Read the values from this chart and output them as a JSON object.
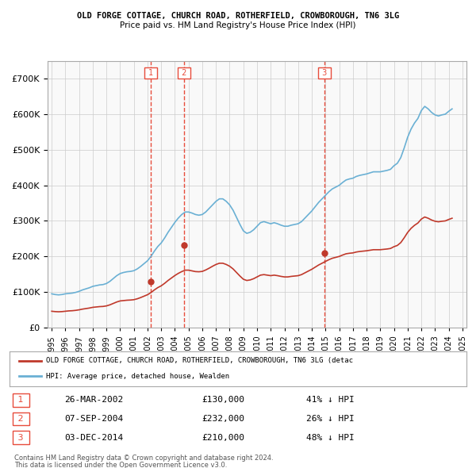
{
  "title1": "OLD FORGE COTTAGE, CHURCH ROAD, ROTHERFIELD, CROWBOROUGH, TN6 3LG",
  "title2": "Price paid vs. HM Land Registry's House Price Index (HPI)",
  "legend_red": "OLD FORGE COTTAGE, CHURCH ROAD, ROTHERFIELD, CROWBOROUGH, TN6 3LG (detac",
  "legend_blue": "HPI: Average price, detached house, Wealden",
  "transactions": [
    {
      "num": 1,
      "date": "26-MAR-2002",
      "price": 130000,
      "pct": "41%",
      "dir": "↓"
    },
    {
      "num": 2,
      "date": "07-SEP-2004",
      "price": 232000,
      "pct": "26%",
      "dir": "↓"
    },
    {
      "num": 3,
      "date": "03-DEC-2014",
      "price": 210000,
      "pct": "48%",
      "dir": "↓"
    }
  ],
  "footnote1": "Contains HM Land Registry data © Crown copyright and database right 2024.",
  "footnote2": "This data is licensed under the Open Government Licence v3.0.",
  "hpi_color": "#6ab0d4",
  "price_color": "#c0392b",
  "marker_color": "#c0392b",
  "vline_color": "#e74c3c",
  "background_plot": "#f9f9f9",
  "background_fig": "#ffffff",
  "grid_color": "#cccccc",
  "ylim": [
    0,
    750000
  ],
  "yticks": [
    0,
    100000,
    200000,
    300000,
    400000,
    500000,
    600000,
    700000
  ],
  "hpi_data": {
    "dates": [
      1995.0,
      1995.25,
      1995.5,
      1995.75,
      1996.0,
      1996.25,
      1996.5,
      1996.75,
      1997.0,
      1997.25,
      1997.5,
      1997.75,
      1998.0,
      1998.25,
      1998.5,
      1998.75,
      1999.0,
      1999.25,
      1999.5,
      1999.75,
      2000.0,
      2000.25,
      2000.5,
      2000.75,
      2001.0,
      2001.25,
      2001.5,
      2001.75,
      2002.0,
      2002.25,
      2002.5,
      2002.75,
      2003.0,
      2003.25,
      2003.5,
      2003.75,
      2004.0,
      2004.25,
      2004.5,
      2004.75,
      2005.0,
      2005.25,
      2005.5,
      2005.75,
      2006.0,
      2006.25,
      2006.5,
      2006.75,
      2007.0,
      2007.25,
      2007.5,
      2007.75,
      2008.0,
      2008.25,
      2008.5,
      2008.75,
      2009.0,
      2009.25,
      2009.5,
      2009.75,
      2010.0,
      2010.25,
      2010.5,
      2010.75,
      2011.0,
      2011.25,
      2011.5,
      2011.75,
      2012.0,
      2012.25,
      2012.5,
      2012.75,
      2013.0,
      2013.25,
      2013.5,
      2013.75,
      2014.0,
      2014.25,
      2014.5,
      2014.75,
      2015.0,
      2015.25,
      2015.5,
      2015.75,
      2016.0,
      2016.25,
      2016.5,
      2016.75,
      2017.0,
      2017.25,
      2017.5,
      2017.75,
      2018.0,
      2018.25,
      2018.5,
      2018.75,
      2019.0,
      2019.25,
      2019.5,
      2019.75,
      2020.0,
      2020.25,
      2020.5,
      2020.75,
      2021.0,
      2021.25,
      2021.5,
      2021.75,
      2022.0,
      2022.25,
      2022.5,
      2022.75,
      2023.0,
      2023.25,
      2023.5,
      2023.75,
      2024.0,
      2024.25
    ],
    "values": [
      95000,
      93000,
      92000,
      93000,
      95000,
      96000,
      97000,
      99000,
      102000,
      106000,
      109000,
      112000,
      116000,
      118000,
      120000,
      121000,
      124000,
      130000,
      138000,
      146000,
      152000,
      155000,
      157000,
      158000,
      160000,
      165000,
      172000,
      180000,
      188000,
      200000,
      215000,
      228000,
      238000,
      252000,
      268000,
      282000,
      296000,
      308000,
      318000,
      325000,
      325000,
      322000,
      318000,
      316000,
      318000,
      325000,
      335000,
      345000,
      355000,
      362000,
      362000,
      355000,
      345000,
      330000,
      310000,
      290000,
      272000,
      265000,
      268000,
      275000,
      285000,
      295000,
      298000,
      295000,
      292000,
      295000,
      292000,
      288000,
      285000,
      285000,
      288000,
      290000,
      292000,
      298000,
      308000,
      318000,
      328000,
      340000,
      352000,
      362000,
      372000,
      382000,
      390000,
      395000,
      400000,
      408000,
      415000,
      418000,
      420000,
      425000,
      428000,
      430000,
      432000,
      435000,
      438000,
      438000,
      438000,
      440000,
      442000,
      445000,
      455000,
      462000,
      478000,
      505000,
      535000,
      558000,
      575000,
      588000,
      610000,
      622000,
      615000,
      605000,
      598000,
      595000,
      598000,
      600000,
      608000,
      615000
    ]
  },
  "price_hpi_data": {
    "dates": [
      1995.0,
      1995.25,
      1995.5,
      1995.75,
      1996.0,
      1996.25,
      1996.5,
      1996.75,
      1997.0,
      1997.25,
      1997.5,
      1997.75,
      1998.0,
      1998.25,
      1998.5,
      1998.75,
      1999.0,
      1999.25,
      1999.5,
      1999.75,
      2000.0,
      2000.25,
      2000.5,
      2000.75,
      2001.0,
      2001.25,
      2001.5,
      2001.75,
      2002.0,
      2002.25,
      2002.5,
      2002.75,
      2003.0,
      2003.25,
      2003.5,
      2003.75,
      2004.0,
      2004.25,
      2004.5,
      2004.75,
      2005.0,
      2005.25,
      2005.5,
      2005.75,
      2006.0,
      2006.25,
      2006.5,
      2006.75,
      2007.0,
      2007.25,
      2007.5,
      2007.75,
      2008.0,
      2008.25,
      2008.5,
      2008.75,
      2009.0,
      2009.25,
      2009.5,
      2009.75,
      2010.0,
      2010.25,
      2010.5,
      2010.75,
      2011.0,
      2011.25,
      2011.5,
      2011.75,
      2012.0,
      2012.25,
      2012.5,
      2012.75,
      2013.0,
      2013.25,
      2013.5,
      2013.75,
      2014.0,
      2014.25,
      2014.5,
      2014.75,
      2015.0,
      2015.25,
      2015.5,
      2015.75,
      2016.0,
      2016.25,
      2016.5,
      2016.75,
      2017.0,
      2017.25,
      2017.5,
      2017.75,
      2018.0,
      2018.25,
      2018.5,
      2018.75,
      2019.0,
      2019.25,
      2019.5,
      2019.75,
      2020.0,
      2020.25,
      2020.5,
      2020.75,
      2021.0,
      2021.25,
      2021.5,
      2021.75,
      2022.0,
      2022.25,
      2022.5,
      2022.75,
      2023.0,
      2023.25,
      2023.5,
      2023.75,
      2024.0,
      2024.25
    ],
    "values": [
      46000,
      45000,
      44500,
      45000,
      46000,
      47000,
      47500,
      48500,
      50000,
      52000,
      53500,
      55000,
      57000,
      58000,
      59000,
      59500,
      61000,
      64000,
      68000,
      72000,
      75000,
      76000,
      77000,
      77500,
      78500,
      81000,
      84500,
      88500,
      92500,
      98500,
      106000,
      112500,
      117500,
      124500,
      132500,
      139500,
      146500,
      152500,
      157500,
      161500,
      161500,
      159500,
      157500,
      157000,
      158000,
      162000,
      167000,
      172500,
      177500,
      181000,
      181000,
      177500,
      172500,
      165000,
      155000,
      145000,
      136000,
      132500,
      134000,
      137500,
      142500,
      147500,
      149000,
      147500,
      146000,
      147500,
      146000,
      144000,
      142500,
      142500,
      144000,
      145000,
      146000,
      149000,
      154000,
      159000,
      164000,
      170000,
      176000,
      181000,
      186000,
      191000,
      195000,
      197500,
      200000,
      204000,
      207500,
      209000,
      210000,
      212500,
      214000,
      215000,
      216000,
      217500,
      219000,
      219000,
      219000,
      220000,
      221000,
      222500,
      227500,
      231000,
      239000,
      252500,
      267500,
      279000,
      287500,
      294000,
      305000,
      311000,
      307500,
      302500,
      299000,
      297500,
      299000,
      300000,
      304000,
      307500
    ]
  },
  "transaction_dates": [
    2002.23,
    2004.68,
    2014.92
  ],
  "transaction_prices": [
    130000,
    232000,
    210000
  ],
  "vline_dates": [
    2002.23,
    2004.68,
    2014.92
  ]
}
